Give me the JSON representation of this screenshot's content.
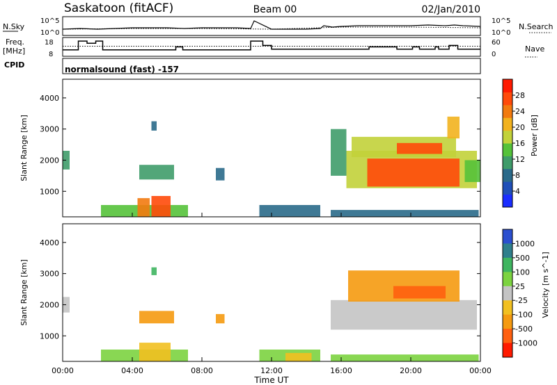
{
  "header": {
    "title": "Saskatoon (fitACF)",
    "beam": "Beam 00",
    "date": "02/Jan/2010"
  },
  "noise_panel": {
    "left_label": "N.Sky",
    "left_ticks": [
      "10^5",
      "10^0"
    ],
    "right_ticks": [
      "10^5",
      "10^0"
    ],
    "right_label": "N.Search"
  },
  "freq_panel": {
    "label_line1": "Freq.",
    "label_line2": "[MHz]",
    "left_ticks": [
      "18",
      "8"
    ],
    "right_ticks": [
      "60",
      "0"
    ],
    "right_label": "Nave"
  },
  "cpid_panel": {
    "label": "CPID",
    "mode_text": "normalsound (fast) -157"
  },
  "chart_data": [
    {
      "type": "line",
      "name": "noise",
      "x_range_hours": [
        0,
        24
      ],
      "series": [
        {
          "name": "N.Sky",
          "style": "solid",
          "x": [
            0,
            1,
            2,
            3,
            4,
            5,
            6,
            7,
            8,
            9,
            10,
            10.8,
            11,
            12,
            13,
            14,
            14.8,
            15,
            15.5,
            16,
            17,
            18,
            19,
            20,
            21,
            22,
            22.5,
            23,
            24
          ],
          "y_norm": [
            0.3,
            0.35,
            0.3,
            0.35,
            0.4,
            0.4,
            0.4,
            0.35,
            0.4,
            0.4,
            0.4,
            0.35,
            0.9,
            0.3,
            0.3,
            0.3,
            0.35,
            0.55,
            0.45,
            0.5,
            0.55,
            0.55,
            0.55,
            0.55,
            0.6,
            0.55,
            0.6,
            0.55,
            0.5
          ]
        },
        {
          "name": "N.Search",
          "style": "dotted",
          "x": [
            0,
            4,
            8,
            12,
            16,
            20,
            24
          ],
          "y_norm": [
            0.3,
            0.35,
            0.35,
            0.3,
            0.45,
            0.45,
            0.4
          ]
        }
      ]
    },
    {
      "type": "line",
      "name": "frequency_and_nave",
      "x_range_hours": [
        0,
        24
      ],
      "freq_ylim_MHz": [
        8,
        18
      ],
      "nave_ylim": [
        0,
        60
      ],
      "series": [
        {
          "name": "Freq.",
          "style": "solid",
          "x": [
            0,
            0.9,
            0.9,
            1.4,
            1.4,
            1.9,
            1.9,
            2.3,
            2.3,
            6.5,
            6.5,
            6.9,
            6.9,
            10.8,
            10.8,
            11.5,
            11.5,
            12,
            12,
            15.3,
            15.3,
            17.6,
            17.6,
            19.2,
            19.2,
            20.1,
            20.1,
            20.5,
            20.5,
            21.4,
            21.4,
            21.6,
            21.6,
            22.2,
            22.2,
            22.7,
            22.7,
            24
          ],
          "y": [
            11,
            11,
            17,
            17,
            15.5,
            15.5,
            17,
            17,
            11,
            11,
            13,
            13,
            11,
            11,
            17,
            17,
            14,
            14,
            11.5,
            11.5,
            11.5,
            11.5,
            13,
            13,
            11.5,
            11.5,
            13,
            13,
            11.5,
            11.5,
            13,
            13,
            11.5,
            11.5,
            14,
            14,
            11.5,
            11.5
          ]
        },
        {
          "name": "Nave",
          "style": "dotted",
          "x": [
            0,
            24
          ],
          "y": [
            33,
            33
          ]
        }
      ]
    },
    {
      "type": "heatmap",
      "name": "power",
      "xlabel": "",
      "ylabel": "Slant Range [km]",
      "ylim_km": [
        180,
        4600
      ],
      "yticks": [
        1000,
        2000,
        3000,
        4000
      ],
      "colorbar": {
        "label": "Power [dB]",
        "range": [
          0,
          32
        ],
        "ticks": [
          4,
          8,
          12,
          16,
          20,
          24,
          28
        ],
        "colors": [
          "#1a2dff",
          "#1f4fb8",
          "#2a6a8a",
          "#3f9c6a",
          "#55c23a",
          "#c2d23a",
          "#f2b21e",
          "#f27a0f",
          "#ff4a0a",
          "#ff1a00"
        ]
      },
      "echo_regions": [
        {
          "t0": 0.0,
          "t1": 0.4,
          "r0": 1700,
          "r1": 2300,
          "level": 12
        },
        {
          "t0": 2.2,
          "t1": 7.2,
          "r0": 180,
          "r1": 560,
          "level": 14
        },
        {
          "t0": 4.3,
          "t1": 5.0,
          "r0": 180,
          "r1": 780,
          "level": 24
        },
        {
          "t0": 5.1,
          "t1": 6.2,
          "r0": 180,
          "r1": 850,
          "level": 28
        },
        {
          "t0": 4.4,
          "t1": 6.4,
          "r0": 1380,
          "r1": 1850,
          "level": 10
        },
        {
          "t0": 5.1,
          "t1": 5.4,
          "r0": 2950,
          "r1": 3250,
          "level": 8
        },
        {
          "t0": 8.8,
          "t1": 9.3,
          "r0": 1350,
          "r1": 1750,
          "level": 8
        },
        {
          "t0": 11.3,
          "t1": 14.8,
          "r0": 180,
          "r1": 560,
          "level": 8
        },
        {
          "t0": 15.4,
          "t1": 23.9,
          "r0": 180,
          "r1": 400,
          "level": 8
        },
        {
          "t0": 15.4,
          "t1": 16.3,
          "r0": 1500,
          "r1": 3000,
          "level": 12
        },
        {
          "t0": 16.3,
          "t1": 23.8,
          "r0": 1100,
          "r1": 2300,
          "level": 18
        },
        {
          "t0": 17.5,
          "t1": 22.8,
          "r0": 1150,
          "r1": 2050,
          "level": 26
        },
        {
          "t0": 16.6,
          "t1": 22.6,
          "r0": 2100,
          "r1": 2750,
          "level": 18
        },
        {
          "t0": 19.2,
          "t1": 21.8,
          "r0": 2200,
          "r1": 2550,
          "level": 26
        },
        {
          "t0": 22.1,
          "t1": 22.8,
          "r0": 2700,
          "r1": 3400,
          "level": 20
        },
        {
          "t0": 23.1,
          "t1": 24.0,
          "r0": 1300,
          "r1": 2000,
          "level": 14
        }
      ]
    },
    {
      "type": "heatmap",
      "name": "velocity",
      "xlabel": "Time UT",
      "ylabel": "Slant Range [km]",
      "ylim_km": [
        180,
        4600
      ],
      "yticks": [
        1000,
        2000,
        3000,
        4000
      ],
      "xticks": [
        "00:00",
        "04:00",
        "08:00",
        "12:00",
        "16:00",
        "20:00",
        "00:00"
      ],
      "colorbar": {
        "label": "Velocity [m s^-1]",
        "tick_labels": [
          "1000",
          "500",
          "100",
          "25",
          "-25",
          "-100",
          "-500",
          "-1000"
        ],
        "bands": [
          {
            "label": "positive high",
            "color": "#2b4fcf"
          },
          {
            "label": "positive mid",
            "color": "#2f7f8c"
          },
          {
            "label": "positive low",
            "color": "#3fb560"
          },
          {
            "label": "small positive",
            "color": "#7cd340"
          },
          {
            "label": "ground scatter",
            "color": "#c4c4c4"
          },
          {
            "label": "small negative",
            "color": "#f2c020"
          },
          {
            "label": "negative mid",
            "color": "#f59a10"
          },
          {
            "label": "negative high",
            "color": "#ff6010"
          },
          {
            "label": "negative max",
            "color": "#ff1a00"
          }
        ]
      },
      "echo_regions": [
        {
          "t0": 0.0,
          "t1": 0.4,
          "r0": 1750,
          "r1": 2250,
          "category": "ground scatter"
        },
        {
          "t0": 2.2,
          "t1": 7.2,
          "r0": 180,
          "r1": 560,
          "category": "small positive"
        },
        {
          "t0": 4.4,
          "t1": 6.2,
          "r0": 180,
          "r1": 780,
          "category": "small negative"
        },
        {
          "t0": 4.4,
          "t1": 6.4,
          "r0": 1400,
          "r1": 1800,
          "category": "negative mid"
        },
        {
          "t0": 5.1,
          "t1": 5.4,
          "r0": 2950,
          "r1": 3200,
          "category": "positive low"
        },
        {
          "t0": 8.8,
          "t1": 9.3,
          "r0": 1400,
          "r1": 1700,
          "category": "negative mid"
        },
        {
          "t0": 11.3,
          "t1": 14.8,
          "r0": 180,
          "r1": 560,
          "category": "small positive"
        },
        {
          "t0": 12.8,
          "t1": 14.3,
          "r0": 180,
          "r1": 450,
          "category": "small negative"
        },
        {
          "t0": 15.4,
          "t1": 23.9,
          "r0": 180,
          "r1": 400,
          "category": "small positive"
        },
        {
          "t0": 15.4,
          "t1": 23.8,
          "r0": 1200,
          "r1": 2150,
          "category": "ground scatter"
        },
        {
          "t0": 16.4,
          "t1": 22.8,
          "r0": 2100,
          "r1": 3100,
          "category": "negative mid"
        },
        {
          "t0": 19.0,
          "t1": 22.0,
          "r0": 2200,
          "r1": 2600,
          "category": "negative high"
        }
      ]
    }
  ]
}
